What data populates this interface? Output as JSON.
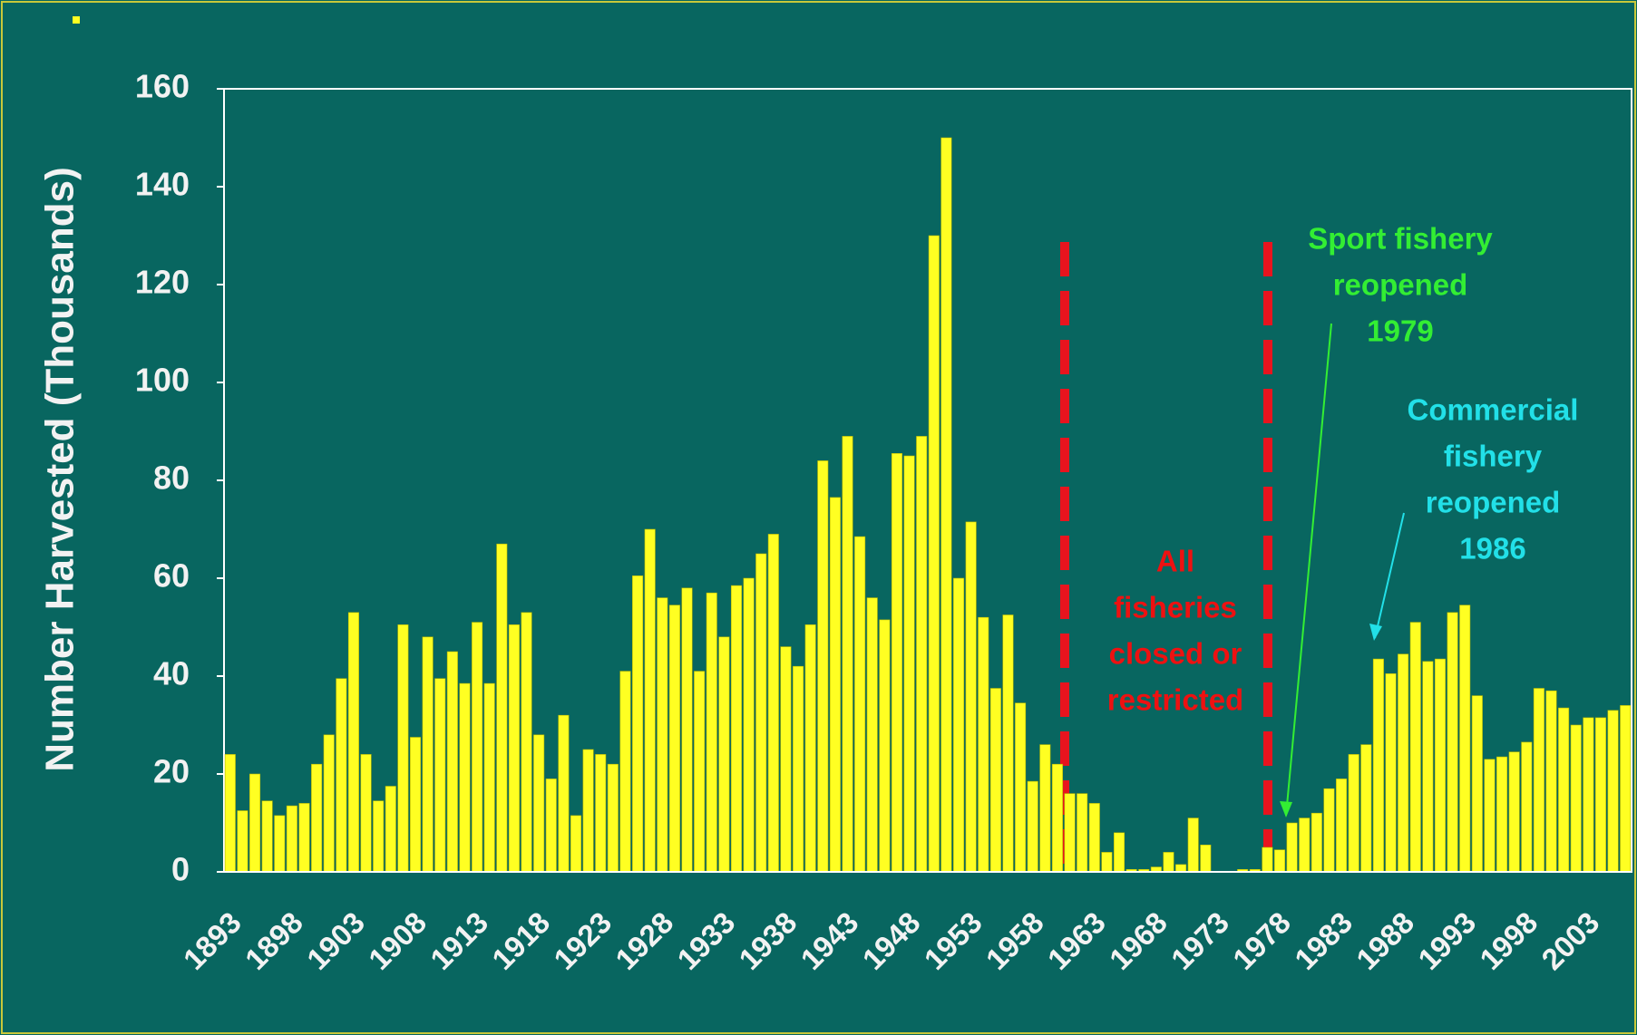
{
  "chart_data": {
    "type": "bar",
    "y_label": "Number Harvested (Thousands)",
    "categories": [
      "1893",
      null,
      null,
      null,
      null,
      "1898",
      null,
      null,
      null,
      null,
      "1903",
      null,
      null,
      null,
      null,
      "1908",
      null,
      null,
      null,
      null,
      "1913",
      null,
      null,
      null,
      null,
      "1918",
      null,
      null,
      null,
      null,
      "1923",
      null,
      null,
      null,
      null,
      "1928",
      null,
      null,
      null,
      null,
      "1933",
      null,
      null,
      null,
      null,
      "1938",
      null,
      null,
      null,
      null,
      "1943",
      null,
      null,
      null,
      null,
      "1948",
      null,
      null,
      null,
      null,
      "1953",
      null,
      null,
      null,
      null,
      "1958",
      null,
      null,
      null,
      null,
      "1963",
      null,
      null,
      null,
      null,
      "1968",
      null,
      null,
      null,
      null,
      "1973",
      null,
      null,
      null,
      null,
      "1978",
      null,
      null,
      null,
      null,
      "1983",
      null,
      null,
      null,
      null,
      "1988",
      null,
      null,
      null,
      null,
      "1993",
      null,
      null,
      null,
      null,
      "1998",
      null,
      null,
      null,
      null,
      "2003",
      null,
      null,
      null
    ],
    "values": [
      24,
      12.5,
      20,
      14.5,
      11.5,
      13.5,
      14,
      22,
      28,
      39.5,
      53,
      24,
      14.5,
      17.5,
      50.5,
      27.5,
      48,
      39.5,
      45,
      38.5,
      51,
      38.5,
      67,
      50.5,
      53,
      28,
      19,
      32,
      11.5,
      25,
      24,
      22,
      41,
      60.5,
      70,
      56,
      54.5,
      58,
      41,
      57,
      48,
      58.5,
      60,
      65,
      69,
      46,
      42,
      50.5,
      84,
      76.5,
      89,
      68.5,
      56,
      51.5,
      85.5,
      85,
      89,
      130,
      150,
      60,
      71.5,
      52,
      37.5,
      52.5,
      34.5,
      18.5,
      26,
      22,
      16,
      16,
      14,
      4,
      8,
      0.5,
      0.5,
      1,
      4,
      1.5,
      11,
      5.5,
      0,
      0,
      0.5,
      0.5,
      5,
      4.5,
      10,
      11,
      12,
      17,
      19,
      24,
      26,
      43.5,
      40.5,
      44.5,
      51,
      43,
      43.5,
      53,
      54.5,
      36,
      23,
      23.5,
      24.5,
      26.5,
      37.5,
      37,
      33.5,
      30,
      31.5,
      31.5,
      33,
      34
    ],
    "color": "#ffff22",
    "ylim": [
      0,
      160
    ],
    "yticks": [
      0,
      20,
      40,
      60,
      80,
      100,
      120,
      140,
      160
    ],
    "annotations": [
      {
        "lines": [
          "All",
          "fisheries",
          "closed or",
          "restricted"
        ],
        "color": "#ee1111"
      },
      {
        "lines": [
          "Sport fishery",
          "reopened",
          "1979"
        ],
        "color": "#33ee33"
      },
      {
        "lines": [
          "Commercial",
          "fishery",
          "reopened",
          "1986"
        ],
        "color": "#22e0e8"
      }
    ]
  }
}
